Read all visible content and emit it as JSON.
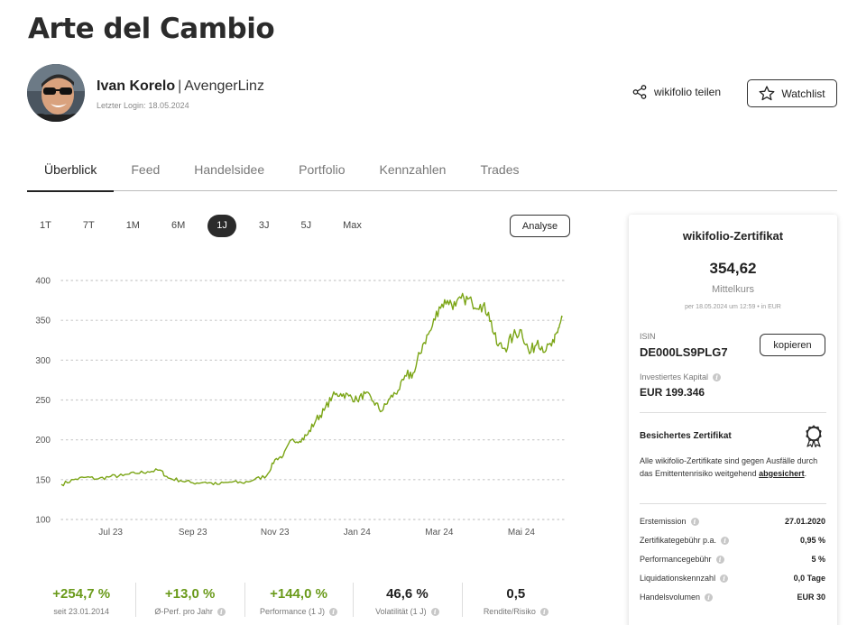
{
  "page": {
    "title": "Arte del Cambio"
  },
  "user": {
    "name": "Ivan Korelo",
    "separator": "|",
    "nickname": "AvengerLinz",
    "last_login_label": "Letzter Login:",
    "last_login_date": "18.05.2024"
  },
  "actions": {
    "share_label": "wikifolio teilen",
    "watchlist_label": "Watchlist"
  },
  "tabs": [
    {
      "label": "Überblick",
      "active": true
    },
    {
      "label": "Feed"
    },
    {
      "label": "Handelsidee"
    },
    {
      "label": "Portfolio"
    },
    {
      "label": "Kennzahlen"
    },
    {
      "label": "Trades"
    }
  ],
  "ranges": [
    "1T",
    "7T",
    "1M",
    "6M",
    "1J",
    "3J",
    "5J",
    "Max"
  ],
  "active_range": "1J",
  "analyse_label": "Analyse",
  "colors": {
    "line": "#7ba516",
    "positive": "#6a9a1a"
  },
  "chart_data": {
    "type": "line",
    "y_ticks": [
      100,
      150,
      200,
      250,
      300,
      350,
      400
    ],
    "ylim": [
      100,
      400
    ],
    "x_tick_labels": [
      "Jul 23",
      "Sep 23",
      "Nov 23",
      "Jan 24",
      "Mar 24",
      "Mai 24"
    ],
    "x_tick_positions": [
      1.2,
      3.2,
      5.2,
      7.2,
      9.2,
      11.2
    ],
    "xlim": [
      0,
      12.3
    ],
    "grid": "horizontal-dotted",
    "series": [
      {
        "x": [
          0,
          0.3,
          0.6,
          0.9,
          1.2,
          1.5,
          1.8,
          2.1,
          2.4,
          2.6,
          2.9,
          3.2,
          3.5,
          3.8,
          4.1,
          4.4,
          4.7,
          5.0,
          5.2,
          5.4,
          5.6,
          5.8,
          6.0,
          6.2,
          6.4,
          6.6,
          6.8,
          7.0,
          7.2,
          7.4,
          7.6,
          7.8,
          8.0,
          8.2,
          8.4,
          8.6,
          8.8,
          9.0,
          9.2,
          9.4,
          9.6,
          9.8,
          10.0,
          10.2,
          10.4,
          10.6,
          10.8,
          11.0,
          11.2,
          11.4,
          11.6,
          11.8,
          12.0,
          12.1,
          12.2
        ],
        "y": [
          144,
          150,
          153,
          151,
          154,
          155,
          158,
          160,
          162,
          152,
          149,
          146,
          147,
          144,
          147,
          146,
          150,
          155,
          175,
          180,
          200,
          198,
          207,
          225,
          237,
          255,
          258,
          255,
          250,
          258,
          248,
          236,
          252,
          262,
          280,
          285,
          320,
          338,
          367,
          375,
          368,
          378,
          372,
          370,
          360,
          320,
          315,
          330,
          338,
          308,
          325,
          312,
          322,
          340,
          354
        ]
      }
    ]
  },
  "stats": [
    {
      "value": "+254,7 %",
      "label": "seit 23.01.2014",
      "positive": true,
      "info": false
    },
    {
      "value": "+13,0 %",
      "label": "Ø-Perf. pro Jahr",
      "positive": true,
      "info": true
    },
    {
      "value": "+144,0 %",
      "label": "Performance (1 J)",
      "positive": true,
      "info": true
    },
    {
      "value": "46,6 %",
      "label": "Volatilität (1 J)",
      "positive": false,
      "info": true
    },
    {
      "value": "0,5",
      "label": "Rendite/Risiko",
      "positive": false,
      "info": true
    }
  ],
  "certificate": {
    "title": "wikifolio-Zertifikat",
    "price": "354,62",
    "price_label": "Mittelkurs",
    "price_meta": "per 18.05.2024 um 12:59 • in EUR",
    "isin_label": "ISIN",
    "isin": "DE000LS9PLG7",
    "copy_label": "kopieren",
    "capital_label": "Investiertes Kapital",
    "capital_value": "EUR 199.346",
    "secured_title": "Besichertes Zertifikat",
    "secured_text": "Alle wikifolio-Zertifikate sind gegen Ausfälle durch das Emittentenrisiko weitgehend",
    "secured_link": "abgesichert",
    "secured_end": ".",
    "details": [
      {
        "k": "Erstemission",
        "v": "27.01.2020"
      },
      {
        "k": "Zertifikategebühr p.a.",
        "v": "0,95 %"
      },
      {
        "k": "Performancegebühr",
        "v": "5 %"
      },
      {
        "k": "Liquidationskennzahl",
        "v": "0,0 Tage"
      },
      {
        "k": "Handelsvolumen",
        "v": "EUR 30"
      }
    ]
  }
}
